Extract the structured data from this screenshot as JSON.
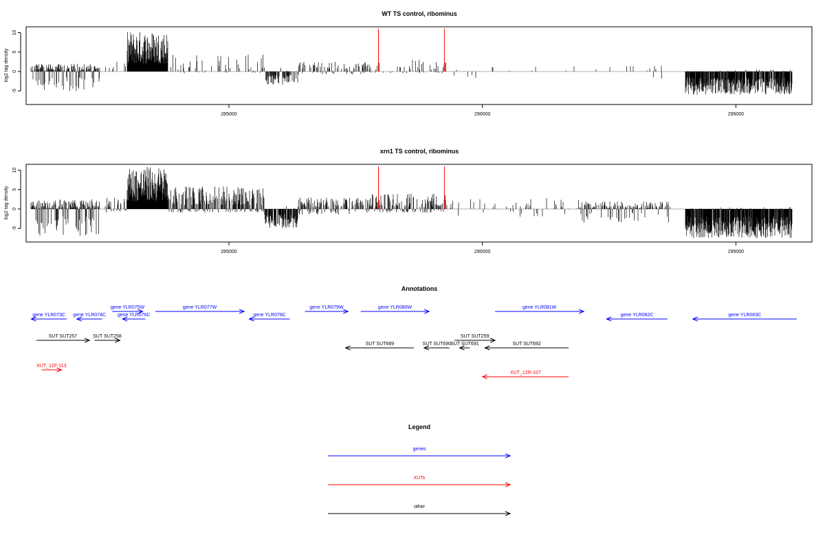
{
  "chart_data": [
    {
      "type": "bar",
      "title": "WT TS control, ribominus",
      "xlabel": "",
      "ylabel": "log2 tag density",
      "xlim": [
        281000,
        296500
      ],
      "ylim": [
        -8.5,
        11.5
      ],
      "yticks": [
        -5,
        0,
        5,
        10
      ],
      "ytick_labels": [
        "-5",
        "0",
        "5",
        "10"
      ],
      "xticks": [
        285000,
        290000,
        295000
      ],
      "xtick_labels": [
        "285000",
        "290000",
        "295000"
      ],
      "colors": {
        "bars": "#000000",
        "highlight": "#ff0000",
        "baseline": "#b0b0b0"
      },
      "highlights": [
        {
          "x": 287950,
          "value": 11
        },
        {
          "x": 289250,
          "value": 11
        }
      ],
      "segments": [
        {
          "x0": 281100,
          "x1": 282450,
          "min": 0,
          "max": 2,
          "neg": -5,
          "density": 0.75
        },
        {
          "x0": 282550,
          "x1": 283000,
          "min": 0.5,
          "max": 2.5,
          "neg": -0.5,
          "density": 0.15
        },
        {
          "x0": 283000,
          "x1": 283800,
          "min": 2,
          "max": 10.5,
          "neg": 0,
          "density": 1.0
        },
        {
          "x0": 283800,
          "x1": 285700,
          "min": 0.3,
          "max": 4.5,
          "neg": -0.5,
          "density": 0.15
        },
        {
          "x0": 285700,
          "x1": 286350,
          "min": 0,
          "max": 1,
          "neg": -3.5,
          "density": 0.55
        },
        {
          "x0": 286350,
          "x1": 287800,
          "min": 0.5,
          "max": 2.5,
          "neg": -0.8,
          "density": 0.3
        },
        {
          "x0": 287800,
          "x1": 289300,
          "min": 0.5,
          "max": 3,
          "neg": -0.5,
          "density": 0.2
        },
        {
          "x0": 289300,
          "x1": 294000,
          "min": 0,
          "max": 1.5,
          "neg": -2,
          "density": 0.04
        },
        {
          "x0": 294000,
          "x1": 296100,
          "min": 0,
          "max": 0.5,
          "neg": -6,
          "density": 0.9
        }
      ]
    },
    {
      "type": "bar",
      "title": "xrn1 TS control, ribominus",
      "xlabel": "",
      "ylabel": "log2 tag density",
      "xlim": [
        281000,
        296500
      ],
      "ylim": [
        -8.5,
        11.5
      ],
      "yticks": [
        -5,
        0,
        5,
        10
      ],
      "ytick_labels": [
        "-5",
        "0",
        "5",
        "10"
      ],
      "xticks": [
        285000,
        290000,
        295000
      ],
      "xtick_labels": [
        "285000",
        "290000",
        "295000"
      ],
      "colors": {
        "bars": "#000000",
        "highlight": "#ff0000",
        "baseline": "#b0b0b0"
      },
      "highlights": [
        {
          "x": 287950,
          "value": 11
        },
        {
          "x": 289250,
          "value": 11
        }
      ],
      "segments": [
        {
          "x0": 281100,
          "x1": 282450,
          "min": 0,
          "max": 2.5,
          "neg": -7,
          "density": 0.8
        },
        {
          "x0": 282550,
          "x1": 283000,
          "min": 0.5,
          "max": 3,
          "neg": -1,
          "density": 0.3
        },
        {
          "x0": 283000,
          "x1": 283800,
          "min": 2,
          "max": 11,
          "neg": 0,
          "density": 1.0
        },
        {
          "x0": 283800,
          "x1": 285700,
          "min": 1,
          "max": 6,
          "neg": -1,
          "density": 0.6
        },
        {
          "x0": 285700,
          "x1": 286350,
          "min": 0,
          "max": 1,
          "neg": -5,
          "density": 0.8
        },
        {
          "x0": 286350,
          "x1": 287800,
          "min": 0.5,
          "max": 3,
          "neg": -1.5,
          "density": 0.5
        },
        {
          "x0": 287800,
          "x1": 289300,
          "min": 0.5,
          "max": 4,
          "neg": -1,
          "density": 0.5
        },
        {
          "x0": 289300,
          "x1": 291900,
          "min": 0,
          "max": 3,
          "neg": -2,
          "density": 0.1
        },
        {
          "x0": 291900,
          "x1": 293700,
          "min": 0,
          "max": 2,
          "neg": -3.5,
          "density": 0.5
        },
        {
          "x0": 294000,
          "x1": 296100,
          "min": 0,
          "max": 0.5,
          "neg": -7.5,
          "density": 0.95
        }
      ]
    },
    {
      "type": "diagram",
      "title": "Annotations",
      "xlim": [
        281000,
        296500
      ],
      "features": [
        {
          "label": "gene YLR073C",
          "class": "gene",
          "strand": "-",
          "x0": 281100,
          "x1": 281800,
          "row": 1
        },
        {
          "label": "gene YLR074C",
          "class": "gene",
          "strand": "-",
          "x0": 282000,
          "x1": 282500,
          "row": 1
        },
        {
          "label": "gene YLR075W",
          "class": "gene",
          "strand": "+",
          "x0": 282700,
          "x1": 283300,
          "row": 0
        },
        {
          "label": "gene YLR076C",
          "class": "gene",
          "strand": "-",
          "x0": 282900,
          "x1": 283350,
          "row": 1
        },
        {
          "label": "gene YLR077W",
          "class": "gene",
          "strand": "+",
          "x0": 283550,
          "x1": 285300,
          "row": 0
        },
        {
          "label": "gene YLR078C",
          "class": "gene",
          "strand": "-",
          "x0": 285400,
          "x1": 286200,
          "row": 1
        },
        {
          "label": "gene YLR079W",
          "class": "gene",
          "strand": "+",
          "x0": 286500,
          "x1": 287350,
          "row": 0
        },
        {
          "label": "gene YLR080W",
          "class": "gene",
          "strand": "+",
          "x0": 287600,
          "x1": 288950,
          "row": 0
        },
        {
          "label": "gene YLR081W",
          "class": "gene",
          "strand": "+",
          "x0": 290250,
          "x1": 292000,
          "row": 0
        },
        {
          "label": "gene YLR082C",
          "class": "gene",
          "strand": "-",
          "x0": 292450,
          "x1": 293650,
          "row": 1
        },
        {
          "label": "gene YLR083C",
          "class": "gene",
          "strand": "-",
          "x0": 294150,
          "x1": 296200,
          "row": 1
        },
        {
          "label": "SUT SUT257",
          "class": "other",
          "strand": "+",
          "x0": 281200,
          "x1": 282250,
          "row": 3
        },
        {
          "label": "SUT SUT258",
          "class": "other",
          "strand": "+",
          "x0": 282350,
          "x1": 282850,
          "row": 3
        },
        {
          "label": "SUT SUT259",
          "class": "other",
          "strand": "+",
          "x0": 289450,
          "x1": 290250,
          "row": 3
        },
        {
          "label": "SUT SUT689",
          "class": "other",
          "strand": "-",
          "x0": 287300,
          "x1": 288650,
          "row": 4
        },
        {
          "label": "SUT SUT690",
          "class": "other",
          "strand": "-",
          "x0": 288850,
          "x1": 289350,
          "row": 4
        },
        {
          "label": "SUT SUT691",
          "class": "other",
          "strand": "-",
          "x0": 289550,
          "x1": 289750,
          "row": 4
        },
        {
          "label": "SUT SUT692",
          "class": "other",
          "strand": "-",
          "x0": 290050,
          "x1": 291700,
          "row": 4
        },
        {
          "label": "XUT_12F-113",
          "class": "xut",
          "strand": "+",
          "x0": 281300,
          "x1": 281700,
          "row": 5
        },
        {
          "label": "XUT_12R-107",
          "class": "xut",
          "strand": "-",
          "x0": 290000,
          "x1": 291700,
          "row": 6
        }
      ]
    },
    {
      "type": "legend",
      "title": "Legend",
      "items": [
        {
          "label": "genes",
          "color": "#0000ff"
        },
        {
          "label": "XUTs",
          "color": "#ff0000"
        },
        {
          "label": "other",
          "color": "#000000"
        }
      ]
    }
  ]
}
